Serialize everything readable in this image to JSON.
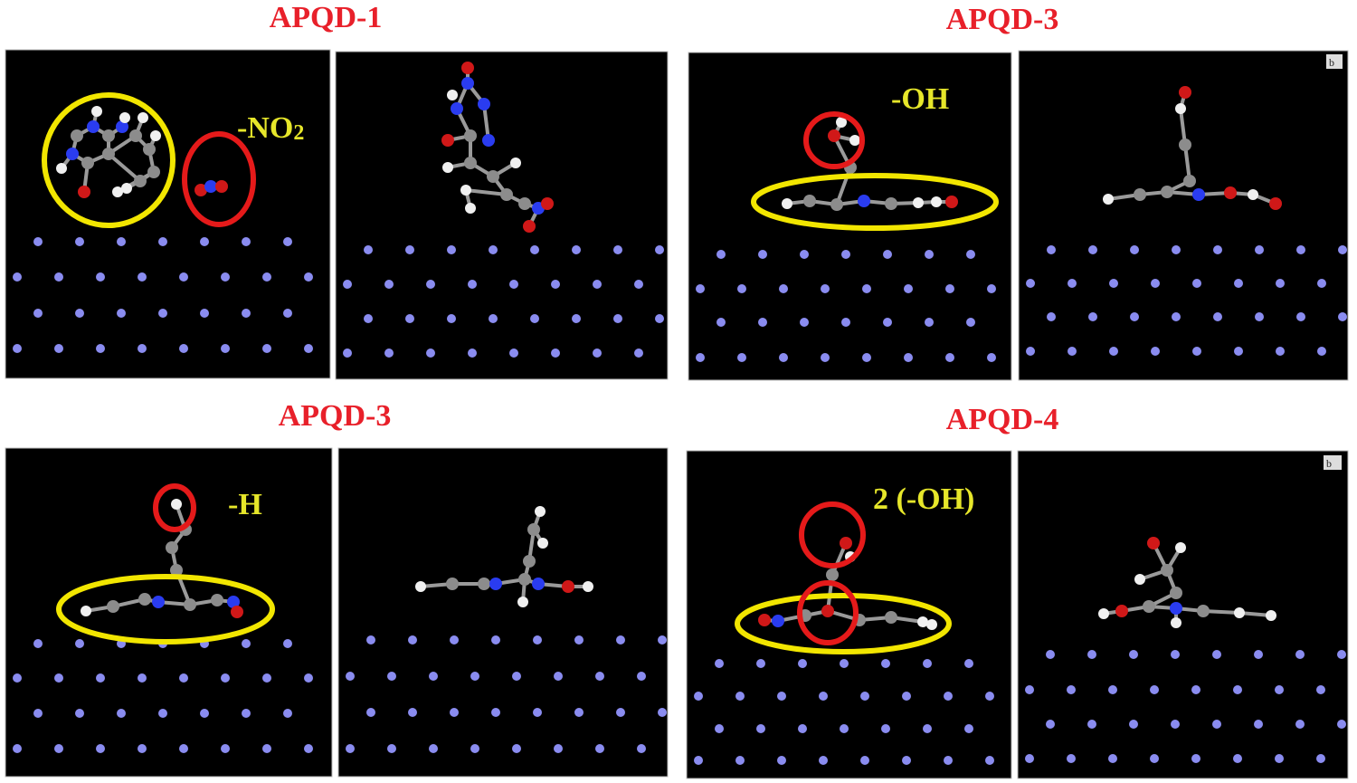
{
  "panels": [
    {
      "title": "APQD-1",
      "annotation": "-NO",
      "annotation_sub": "2"
    },
    {
      "title": "APQD-3",
      "annotation": "-OH",
      "corner_tag": "b"
    },
    {
      "title": "APQD-3",
      "annotation": "-H"
    },
    {
      "title": "APQD-4",
      "annotation": "2 (-OH)",
      "corner_tag": "b"
    }
  ],
  "colors": {
    "title": "#e8202a",
    "annotation": "#e6e62a",
    "highlight_group": "#f2e600",
    "highlight_site": "#e51a1a",
    "substrate_atom": "#8a8cf0",
    "carbon": "#8c8c8c",
    "hydrogen": "#f0f0f0",
    "nitrogen": "#2a3cf0",
    "oxygen": "#d01818",
    "background": "#000000"
  }
}
